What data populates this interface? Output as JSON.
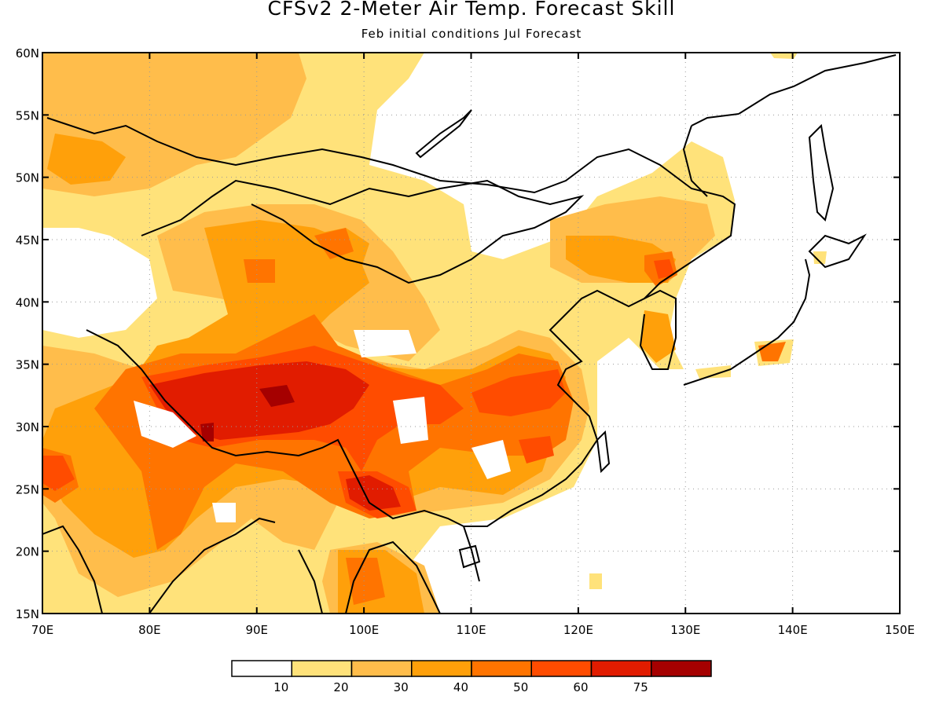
{
  "header": {
    "title": "CFSv2 2-Meter Air Temp. Forecast Skill",
    "subtitle": "Feb initial conditions  Jul Forecast"
  },
  "map": {
    "lon_range": [
      70,
      150
    ],
    "lat_range": [
      15,
      60
    ],
    "lon_ticks": [
      "70E",
      "80E",
      "90E",
      "100E",
      "110E",
      "120E",
      "130E",
      "140E",
      "150E"
    ],
    "lat_ticks": [
      "15N",
      "20N",
      "25N",
      "30N",
      "35N",
      "40N",
      "45N",
      "50N",
      "55N",
      "60N"
    ],
    "grid": true
  },
  "legend": {
    "labels": [
      "10",
      "20",
      "30",
      "40",
      "50",
      "60",
      "75"
    ],
    "colors": [
      "#ffffff",
      "#ffe27a",
      "#ffbd4b",
      "#ffa00a",
      "#ff7400",
      "#ff4c00",
      "#e11c00",
      "#a50000"
    ]
  }
}
